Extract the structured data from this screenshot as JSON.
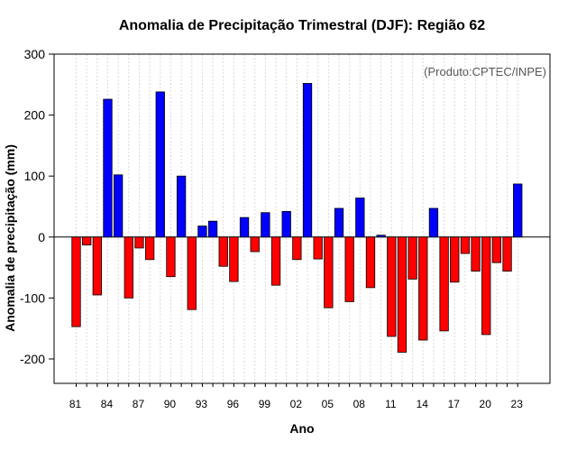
{
  "chart_data": {
    "type": "bar",
    "title": "Anomalia de Precipitação Trimestral (DJF): Região 62",
    "xlabel": "Ano",
    "ylabel": "Anomalia de precipitação (mm)",
    "credit": "(Produto:CPTEC/INPE)",
    "ylim": [
      -240,
      300
    ],
    "yticks": [
      -200,
      -100,
      0,
      100,
      200,
      300
    ],
    "xtick_labels": [
      "81",
      "84",
      "87",
      "90",
      "93",
      "96",
      "99",
      "02",
      "05",
      "08",
      "11",
      "14",
      "17",
      "20",
      "23"
    ],
    "categories": [
      "1981",
      "1982",
      "1983",
      "1984",
      "1985",
      "1986",
      "1987",
      "1988",
      "1989",
      "1990",
      "1991",
      "1992",
      "1993",
      "1994",
      "1995",
      "1996",
      "1997",
      "1998",
      "1999",
      "2000",
      "2001",
      "2002",
      "2003",
      "2004",
      "2005",
      "2006",
      "2007",
      "2008",
      "2009",
      "2010",
      "2011",
      "2012",
      "2013",
      "2014",
      "2015",
      "2016",
      "2017",
      "2018",
      "2019",
      "2020",
      "2021",
      "2022",
      "2023"
    ],
    "values": [
      -147,
      -13,
      -95,
      226,
      102,
      -100,
      -18,
      -37,
      238,
      -65,
      100,
      -119,
      18,
      26,
      -48,
      -73,
      32,
      -24,
      40,
      -79,
      42,
      -37,
      252,
      -36,
      -116,
      47,
      -106,
      64,
      -83,
      3,
      -163,
      -189,
      -69,
      -169,
      47,
      -154,
      -74,
      -27,
      -56,
      -160,
      -42,
      -56,
      87
    ],
    "colors": {
      "positive": "#0000ff",
      "negative": "#ff0000",
      "zero_line": "#000000",
      "grid": "#d9d9d9"
    },
    "grid": true
  }
}
